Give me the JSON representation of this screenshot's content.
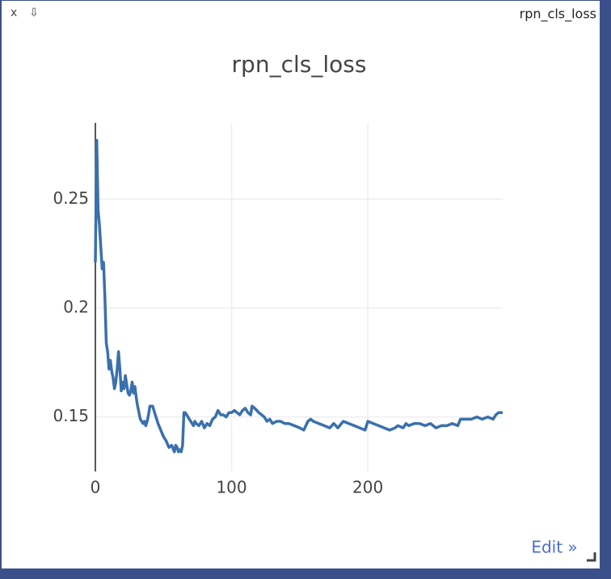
{
  "window": {
    "close": "x",
    "download": "⇩",
    "title": "rpn_cls_loss",
    "edit": "Edit »"
  },
  "chart_data": {
    "type": "line",
    "title": "rpn_cls_loss",
    "x": [
      0,
      1,
      2,
      3,
      4,
      5,
      6,
      7,
      8,
      9,
      10,
      11,
      12,
      13,
      14,
      15,
      16,
      17,
      18,
      19,
      20,
      21,
      22,
      23,
      24,
      25,
      26,
      27,
      28,
      29,
      30,
      31,
      32,
      33,
      34,
      35,
      36,
      37,
      38,
      39,
      40,
      42,
      44,
      46,
      48,
      50,
      52,
      54,
      56,
      58,
      59,
      60,
      61,
      62,
      63,
      64,
      65,
      66,
      68,
      70,
      72,
      73,
      74,
      76,
      78,
      80,
      82,
      84,
      86,
      88,
      90,
      92,
      94,
      96,
      98,
      100,
      102,
      104,
      106,
      108,
      110,
      112,
      114,
      115,
      117,
      120,
      124,
      126,
      128,
      130,
      133,
      136,
      139,
      142,
      146,
      150,
      153,
      156,
      158,
      160,
      164,
      168,
      172,
      175,
      178,
      182,
      186,
      190,
      194,
      198,
      200,
      204,
      208,
      212,
      216,
      220,
      222,
      226,
      228,
      230,
      234,
      238,
      242,
      246,
      250,
      254,
      258,
      262,
      266,
      268,
      272,
      276,
      280,
      284,
      288,
      292,
      294,
      296,
      299
    ],
    "series": [
      {
        "name": "rpn_cls_loss",
        "color": "#3a70ad",
        "values": [
          0.221,
          0.277,
          0.245,
          0.238,
          0.228,
          0.218,
          0.221,
          0.205,
          0.184,
          0.18,
          0.172,
          0.176,
          0.171,
          0.168,
          0.163,
          0.166,
          0.172,
          0.18,
          0.172,
          0.162,
          0.166,
          0.163,
          0.169,
          0.165,
          0.161,
          0.16,
          0.162,
          0.166,
          0.161,
          0.164,
          0.159,
          0.155,
          0.152,
          0.149,
          0.148,
          0.147,
          0.148,
          0.146,
          0.148,
          0.151,
          0.155,
          0.155,
          0.151,
          0.147,
          0.144,
          0.141,
          0.139,
          0.136,
          0.137,
          0.134,
          0.137,
          0.136,
          0.134,
          0.135,
          0.134,
          0.137,
          0.152,
          0.152,
          0.15,
          0.148,
          0.146,
          0.148,
          0.147,
          0.146,
          0.148,
          0.145,
          0.147,
          0.146,
          0.149,
          0.15,
          0.153,
          0.151,
          0.151,
          0.15,
          0.152,
          0.152,
          0.153,
          0.152,
          0.151,
          0.153,
          0.154,
          0.152,
          0.151,
          0.155,
          0.154,
          0.152,
          0.15,
          0.148,
          0.149,
          0.147,
          0.148,
          0.148,
          0.147,
          0.147,
          0.146,
          0.145,
          0.144,
          0.148,
          0.149,
          0.148,
          0.147,
          0.146,
          0.145,
          0.147,
          0.145,
          0.148,
          0.147,
          0.146,
          0.145,
          0.144,
          0.148,
          0.147,
          0.146,
          0.145,
          0.144,
          0.145,
          0.146,
          0.145,
          0.147,
          0.146,
          0.147,
          0.147,
          0.146,
          0.147,
          0.145,
          0.146,
          0.146,
          0.147,
          0.146,
          0.149,
          0.149,
          0.149,
          0.15,
          0.149,
          0.15,
          0.149,
          0.151,
          0.152,
          0.152
        ]
      }
    ],
    "xlim": [
      0,
      299
    ],
    "ylim": [
      0.125,
      0.285
    ],
    "xticks": [
      0,
      100,
      200
    ],
    "yticks": [
      0.15,
      0.2,
      0.25
    ],
    "grid": true
  }
}
